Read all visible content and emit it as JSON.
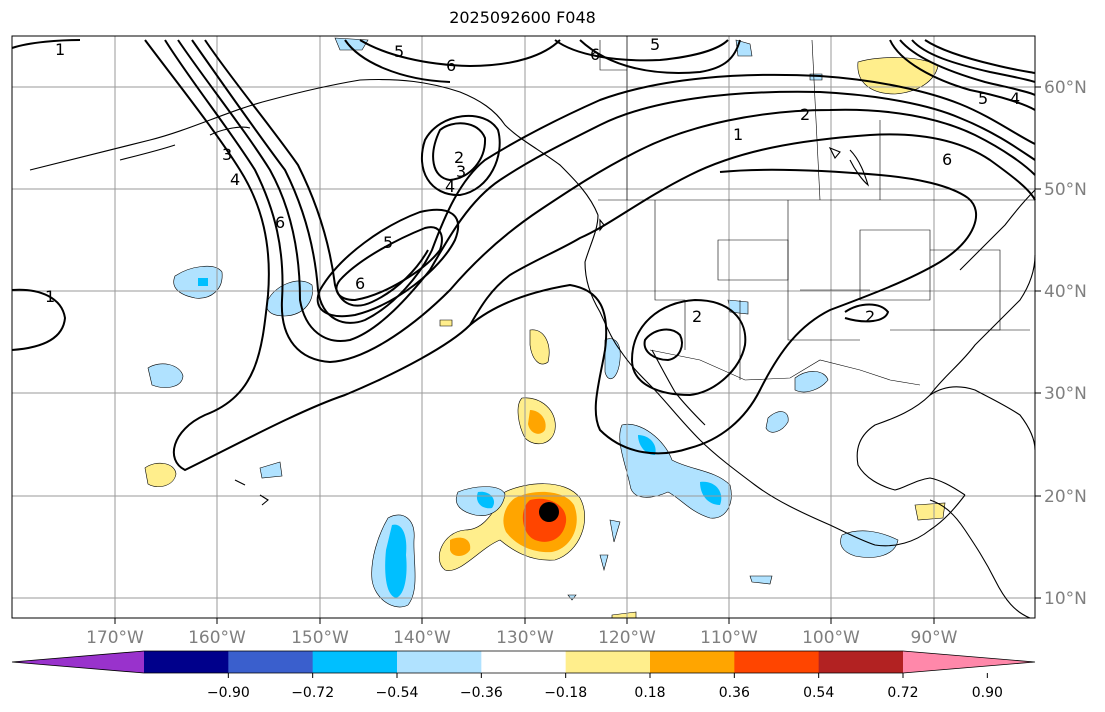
{
  "title": "2025092600 F048",
  "lat_labels": [
    "60°N",
    "50°N",
    "40°N",
    "30°N",
    "20°N",
    "10°N"
  ],
  "lon_labels": [
    "170°W",
    "160°W",
    "150°W",
    "140°W",
    "130°W",
    "120°W",
    "110°W",
    "100°W",
    "90°W"
  ],
  "colorbar": {
    "ticks": [
      "−0.90",
      "−0.72",
      "−0.54",
      "−0.36",
      "−0.18",
      "0.18",
      "0.36",
      "0.54",
      "0.72",
      "0.90"
    ],
    "colors": [
      "#9932cc",
      "#00008b",
      "#3a5fcd",
      "#00bfff",
      "#b0e2ff",
      "#ffffff",
      "#ffee8c",
      "#ffa500",
      "#ff4500",
      "#b22222",
      "#ff88aa"
    ]
  },
  "contour_labels": [
    "1",
    "2",
    "3",
    "4",
    "5",
    "6",
    "5",
    "6",
    "5",
    "6",
    "1",
    "6",
    "4",
    "2",
    "3",
    "4",
    "5",
    "6",
    "2",
    "2",
    "1"
  ],
  "storm_marker": "filled-circle"
}
